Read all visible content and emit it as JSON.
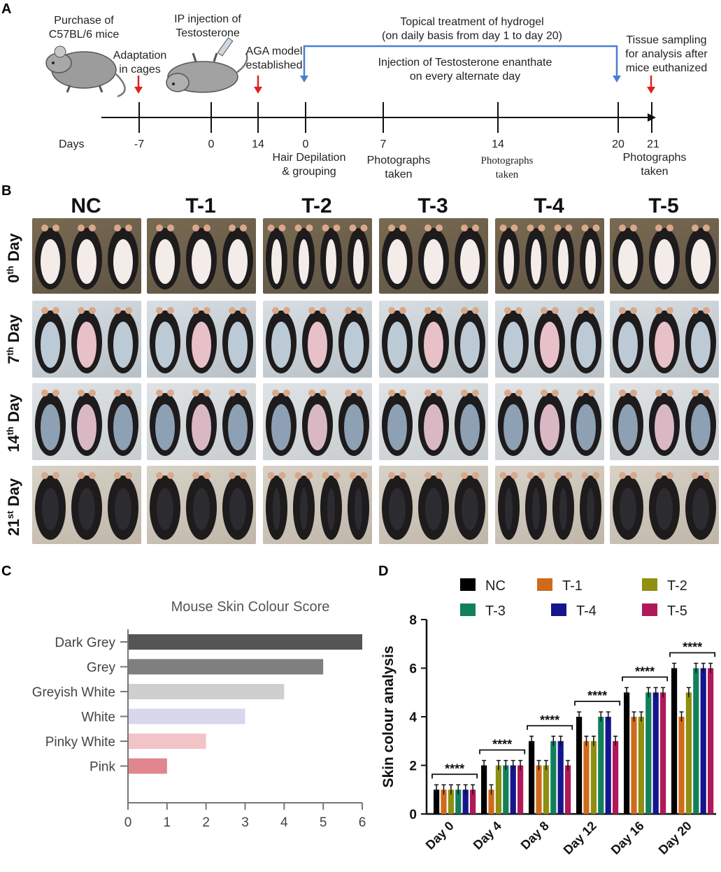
{
  "panels": {
    "a": "A",
    "b": "B",
    "c": "C",
    "d": "D"
  },
  "timeline": {
    "days_label": "Days",
    "ticks": [
      "-7",
      "0",
      "14",
      "0",
      "7",
      "14",
      "20",
      "21"
    ],
    "top_labels": {
      "purchase": [
        "Purchase of",
        "C57BL/6 mice"
      ],
      "adaptation": [
        "Adaptation",
        "in cages"
      ],
      "ip_injection": [
        "IP injection of",
        "Testosterone"
      ],
      "aga_model": [
        "AGA model",
        "established"
      ],
      "topical": [
        "Topical treatment of hydrogel",
        "(on daily basis from day 1 to day 20)"
      ],
      "injection": [
        "Injection of Testosterone enanthate",
        "on every  alternate day"
      ],
      "tissue": [
        "Tissue sampling",
        "for analysis after",
        "mice euthanized"
      ]
    },
    "bottom_labels": {
      "depilation": [
        "Hair Depilation",
        "& grouping"
      ],
      "photos7": [
        "Photographs",
        "taken"
      ],
      "photos14": [
        "Photographs",
        "taken"
      ],
      "photos21": [
        "Photographs",
        "taken"
      ]
    }
  },
  "photo_grid": {
    "columns": [
      "NC",
      "T-1",
      "T-2",
      "T-3",
      "T-4",
      "T-5"
    ],
    "rows": [
      {
        "num": "0",
        "sup": "th",
        "word": "Day"
      },
      {
        "num": "7",
        "sup": "th",
        "word": "Day"
      },
      {
        "num": "14",
        "sup": "th",
        "word": "Day"
      },
      {
        "num": "21",
        "sup": "st",
        "word": "Day"
      }
    ]
  },
  "chart_data": [
    {
      "type": "bar",
      "orientation": "horizontal",
      "title": "Mouse Skin Colour Score",
      "categories": [
        "Dark Grey",
        "Grey",
        "Greyish White",
        "White",
        "Pinky White",
        "Pink"
      ],
      "values": [
        6,
        5,
        4,
        3,
        2,
        1
      ],
      "colors": [
        "#555555",
        "#7f7f7f",
        "#cfcfcf",
        "#d7d8ee",
        "#f2c4c8",
        "#e0868f"
      ],
      "xlim": [
        0,
        6
      ],
      "xticks": [
        "0",
        "1",
        "2",
        "3",
        "4",
        "5",
        "6"
      ],
      "grid": false
    },
    {
      "type": "bar",
      "categories": [
        "Day 0",
        "Day 4",
        "Day 8",
        "Day 12",
        "Day 16",
        "Day 20"
      ],
      "ylabel": "Skin colour analysis",
      "ylim": [
        0,
        8
      ],
      "yticks": [
        "0",
        "2",
        "4",
        "6",
        "8"
      ],
      "series": [
        {
          "name": "NC",
          "color": "#000000",
          "values": [
            1,
            2,
            3,
            4,
            5,
            6
          ]
        },
        {
          "name": "T-1",
          "color": "#d06a1b",
          "values": [
            1,
            1,
            2,
            3,
            4,
            4
          ]
        },
        {
          "name": "T-2",
          "color": "#8f8f12",
          "values": [
            1,
            2,
            2,
            3,
            4,
            5
          ]
        },
        {
          "name": "T-3",
          "color": "#12805a",
          "values": [
            1,
            2,
            3,
            4,
            5,
            6
          ]
        },
        {
          "name": "T-4",
          "color": "#15158f",
          "values": [
            1,
            2,
            3,
            4,
            5,
            6
          ]
        },
        {
          "name": "T-5",
          "color": "#b0185a",
          "values": [
            1,
            2,
            2,
            3,
            5,
            6
          ]
        }
      ],
      "error": 0.2,
      "significance": [
        "****",
        "****",
        "****",
        "****",
        "****",
        "****"
      ],
      "legend": "top"
    }
  ]
}
